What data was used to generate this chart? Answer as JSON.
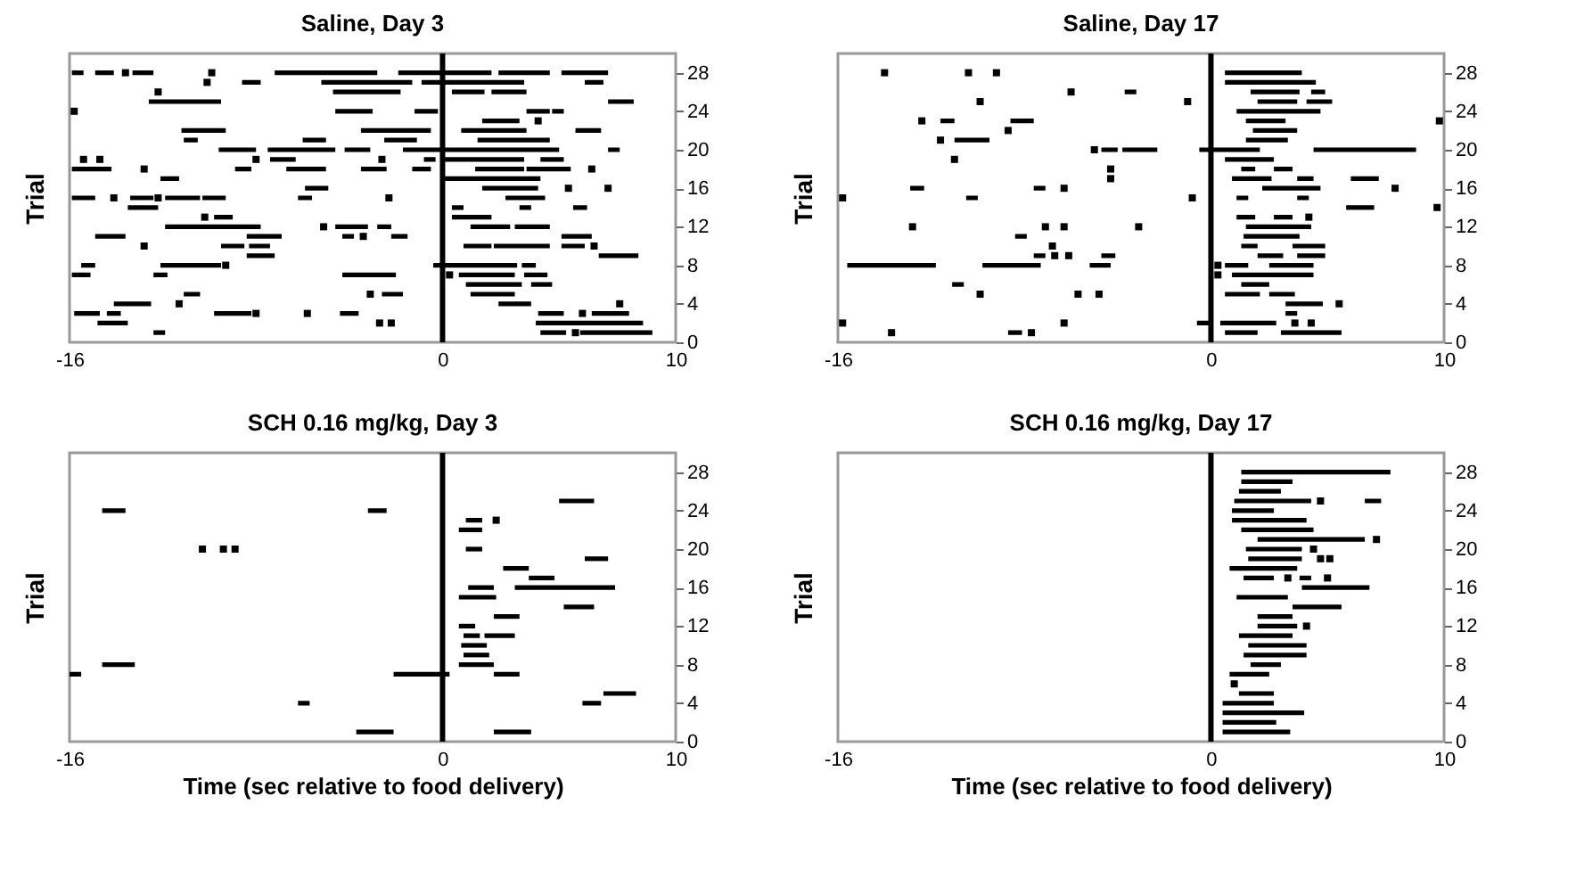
{
  "chart_data": [
    {
      "type": "line",
      "title": "Saline, Day 3",
      "ylabel": "Trial",
      "xlim": [
        -16,
        10
      ],
      "xticks": [
        -16,
        0,
        10
      ],
      "ylim": [
        0,
        30
      ],
      "yticks": [
        0,
        4,
        8,
        12,
        16,
        20,
        24,
        28
      ],
      "grid": false,
      "legend": false,
      "ref_lines": [
        {
          "axis": "x",
          "value": 0,
          "color": "#000000"
        }
      ],
      "series": [
        {
          "color": "#000000",
          "x": [
            -15.9,
            -15.4,
            null,
            -14.9,
            -14.1,
            null,
            -13.3,
            -12.4,
            null,
            -7.2,
            -2.8,
            null,
            -1.9,
            2.1,
            null,
            2.4,
            4.6,
            null,
            5.1,
            7.1
          ],
          "values": [
            28,
            28,
            null,
            28,
            28,
            null,
            28,
            28,
            null,
            28,
            28,
            null,
            28,
            28,
            null,
            28,
            28,
            null,
            28,
            28
          ]
        },
        {
          "color": "#000000",
          "x": [
            -8.6,
            -7.8,
            null,
            -5.2,
            -1.3,
            null,
            -0.9,
            3.5,
            null,
            6.1,
            6.9
          ],
          "values": [
            27,
            27,
            null,
            27,
            27,
            null,
            27,
            27,
            null,
            27,
            27
          ]
        },
        {
          "color": "#000000",
          "x": [
            -4.7,
            -1.8,
            null,
            0.4,
            1.8,
            null,
            2.1,
            3.6
          ],
          "values": [
            26,
            26,
            null,
            26,
            26,
            null,
            26,
            26
          ]
        },
        {
          "color": "#000000",
          "x": [
            -12.6,
            -9.5,
            null,
            7.1,
            8.2
          ],
          "values": [
            25,
            25,
            null,
            25,
            25
          ]
        },
        {
          "color": "#000000",
          "x": [
            -4.6,
            -3.0,
            null,
            -1.2,
            -0.2,
            null,
            3.6,
            4.6,
            null,
            4.7,
            5.2
          ],
          "values": [
            24,
            24,
            null,
            24,
            24,
            null,
            24,
            24,
            null,
            24,
            24
          ]
        },
        {
          "color": "#000000",
          "x": [
            1.7,
            3.3
          ],
          "values": [
            23,
            23
          ]
        },
        {
          "color": "#000000",
          "x": [
            -11.2,
            -9.3,
            null,
            -3.5,
            -0.5,
            null,
            0.8,
            3.6,
            null,
            5.7,
            6.8
          ],
          "values": [
            22,
            22,
            null,
            22,
            22,
            null,
            22,
            22,
            null,
            22,
            22
          ]
        },
        {
          "color": "#000000",
          "x": [
            -11.1,
            -10.5,
            null,
            -6.0,
            -5.0,
            null,
            -2.5,
            -1.1,
            null,
            1.5,
            4.6
          ],
          "values": [
            21,
            21,
            null,
            21,
            21,
            null,
            21,
            21,
            null,
            21,
            21
          ]
        },
        {
          "color": "#000000",
          "x": [
            -9.6,
            -8.0,
            null,
            -7.5,
            -4.6,
            null,
            -4.2,
            -3.1,
            null,
            -1.7,
            5.0,
            null,
            7.1,
            7.6
          ],
          "values": [
            20,
            20,
            null,
            20,
            20,
            null,
            20,
            20,
            null,
            20,
            20,
            null,
            20,
            20
          ]
        },
        {
          "color": "#000000",
          "x": [
            -7.4,
            -6.3,
            null,
            -0.8,
            -0.3,
            null,
            0.1,
            3.5,
            null,
            4.2,
            5.2
          ],
          "values": [
            19,
            19,
            null,
            19,
            19,
            null,
            19,
            19,
            null,
            19,
            19
          ]
        },
        {
          "color": "#000000",
          "x": [
            -15.9,
            -14.2,
            null,
            -8.9,
            -8.2,
            null,
            -6.7,
            -5.0,
            null,
            -3.5,
            -2.4,
            null,
            -1.3,
            -0.5,
            null,
            1.4,
            3.5,
            null,
            3.6,
            5.5
          ],
          "values": [
            18,
            18,
            null,
            18,
            18,
            null,
            18,
            18,
            null,
            18,
            18,
            null,
            18,
            18,
            null,
            18,
            18,
            null,
            18,
            18
          ]
        },
        {
          "color": "#000000",
          "x": [
            -12.1,
            -11.3,
            null,
            0.1,
            4.2
          ],
          "values": [
            17,
            17,
            null,
            17,
            17
          ]
        },
        {
          "color": "#000000",
          "x": [
            -5.9,
            -4.9,
            null,
            1.7,
            4.1
          ],
          "values": [
            16,
            16,
            null,
            16,
            16
          ]
        },
        {
          "color": "#000000",
          "x": [
            -15.9,
            -14.9,
            null,
            -13.4,
            -12.4,
            null,
            -11.9,
            -10.4,
            null,
            -10.3,
            -9.3,
            null,
            -6.2,
            -5.6,
            null,
            2.7,
            4.4
          ],
          "values": [
            15,
            15,
            null,
            15,
            15,
            null,
            15,
            15,
            null,
            15,
            15,
            null,
            15,
            15,
            null,
            15,
            15
          ]
        },
        {
          "color": "#000000",
          "x": [
            -13.5,
            -12.2,
            null,
            0.4,
            0.9,
            null,
            3.3,
            3.8,
            null,
            5.6,
            6.2
          ],
          "values": [
            14,
            14,
            null,
            14,
            14,
            null,
            14,
            14,
            null,
            14,
            14
          ]
        },
        {
          "color": "#000000",
          "x": [
            -9.8,
            -9.0,
            null,
            0.4,
            2.1
          ],
          "values": [
            13,
            13,
            null,
            13,
            13
          ]
        },
        {
          "color": "#000000",
          "x": [
            -11.9,
            -7.8,
            null,
            -4.6,
            -3.2,
            null,
            -2.8,
            -2.2,
            null,
            1.2,
            2.9,
            null,
            3.1,
            4.6
          ],
          "values": [
            12,
            12,
            null,
            12,
            12,
            null,
            12,
            12,
            null,
            12,
            12,
            null,
            12,
            12
          ]
        },
        {
          "color": "#000000",
          "x": [
            -14.9,
            -13.6,
            null,
            -8.4,
            -6.9,
            null,
            -4.3,
            -3.8,
            null,
            -2.2,
            -1.5,
            null,
            5.1,
            6.4
          ],
          "values": [
            11,
            11,
            null,
            11,
            11,
            null,
            11,
            11,
            null,
            11,
            11,
            null,
            11,
            11
          ]
        },
        {
          "color": "#000000",
          "x": [
            -9.5,
            -8.5,
            null,
            -8.3,
            -7.4,
            null,
            0.9,
            2.1,
            null,
            2.2,
            4.6,
            null,
            5.1,
            6.1
          ],
          "values": [
            10,
            10,
            null,
            10,
            10,
            null,
            10,
            10,
            null,
            10,
            10,
            null,
            10,
            10
          ]
        },
        {
          "color": "#000000",
          "x": [
            -8.4,
            -7.2,
            null,
            6.7,
            8.4
          ],
          "values": [
            9,
            9,
            null,
            9,
            9
          ]
        },
        {
          "color": "#000000",
          "x": [
            -15.5,
            -14.9,
            null,
            -12.1,
            -9.5,
            null,
            -0.4,
            3.2,
            null,
            3.4,
            4.0
          ],
          "values": [
            8,
            8,
            null,
            8,
            8,
            null,
            8,
            8,
            null,
            8,
            8
          ]
        },
        {
          "color": "#000000",
          "x": [
            -15.9,
            -15.1,
            null,
            -12.4,
            -11.8,
            null,
            -4.3,
            -2.0,
            null,
            0.7,
            3.1,
            null,
            3.5,
            4.5
          ],
          "values": [
            7,
            7,
            null,
            7,
            7,
            null,
            7,
            7,
            null,
            7,
            7,
            null,
            7,
            7
          ]
        },
        {
          "color": "#000000",
          "x": [
            1.0,
            3.4,
            null,
            3.8,
            4.7
          ],
          "values": [
            6,
            6,
            null,
            6,
            6
          ]
        },
        {
          "color": "#000000",
          "x": [
            -11.1,
            -10.4,
            null,
            -2.6,
            -1.7,
            null,
            1.2,
            3.1
          ],
          "values": [
            5,
            5,
            null,
            5,
            5,
            null,
            5,
            5
          ]
        },
        {
          "color": "#000000",
          "x": [
            -14.1,
            -12.5,
            null,
            2.4,
            3.8
          ],
          "values": [
            4,
            4,
            null,
            4,
            4
          ]
        },
        {
          "color": "#000000",
          "x": [
            -15.8,
            -14.7,
            null,
            -14.4,
            -13.8,
            null,
            -9.8,
            -8.2,
            null,
            -4.4,
            -3.6,
            null,
            4.1,
            5.2,
            null,
            6.4,
            8.0
          ],
          "values": [
            3,
            3,
            null,
            3,
            3,
            null,
            3,
            3,
            null,
            3,
            3,
            null,
            3,
            3,
            null,
            3,
            3
          ]
        },
        {
          "color": "#000000",
          "x": [
            -14.8,
            -13.5,
            null,
            4.0,
            8.6
          ],
          "values": [
            2,
            2,
            null,
            2,
            2
          ]
        },
        {
          "color": "#000000",
          "x": [
            -12.4,
            -11.9,
            null,
            4.2,
            5.3,
            null,
            5.9,
            9.0
          ],
          "values": [
            1,
            1,
            null,
            1,
            1,
            null,
            1,
            1
          ]
        },
        {
          "type": "scatter",
          "marker": "square",
          "color": "#000000",
          "x": [
            -13.6,
            -9.9,
            -10.1,
            -12.2,
            -15.8,
            4.1,
            -15.4,
            -14.7,
            -8.0,
            -2.6,
            -12.8,
            6.4,
            5.4,
            7.1,
            -14.1,
            -12.2,
            -2.3,
            -10.2,
            -5.1,
            -3.4,
            -12.8,
            6.5,
            -9.3,
            0.3,
            -3.1,
            -11.3,
            7.6,
            -8.0,
            -5.8,
            6.0,
            -2.7,
            -2.2,
            5.7
          ],
          "values": [
            28,
            28,
            27,
            26,
            24,
            23,
            19,
            19,
            19,
            19,
            18,
            18,
            16,
            16,
            15,
            15,
            15,
            13,
            12,
            11,
            10,
            10,
            8,
            7,
            5,
            4,
            4,
            3,
            3,
            3,
            2,
            2,
            1
          ]
        }
      ]
    },
    {
      "type": "line",
      "title": "Saline, Day 17",
      "ylabel": "Trial",
      "xlim": [
        -16,
        10
      ],
      "xticks": [
        -16,
        0,
        10
      ],
      "ylim": [
        0,
        30
      ],
      "yticks": [
        0,
        4,
        8,
        12,
        16,
        20,
        24,
        28
      ],
      "grid": false,
      "legend": false,
      "ref_lines": [
        {
          "axis": "x",
          "value": 0,
          "color": "#000000"
        }
      ],
      "series": [
        {
          "color": "#000000",
          "x": [
            0.6,
            3.9
          ],
          "values": [
            28,
            28
          ]
        },
        {
          "color": "#000000",
          "x": [
            0.6,
            4.5
          ],
          "values": [
            27,
            27
          ]
        },
        {
          "color": "#000000",
          "x": [
            -3.7,
            -3.2,
            null,
            1.7,
            3.8,
            null,
            4.3,
            4.9
          ],
          "values": [
            26,
            26,
            null,
            26,
            26,
            null,
            26,
            26
          ]
        },
        {
          "color": "#000000",
          "x": [
            2.0,
            3.7,
            null,
            4.1,
            5.2
          ],
          "values": [
            25,
            25,
            null,
            25,
            25
          ]
        },
        {
          "color": "#000000",
          "x": [
            1.1,
            4.7
          ],
          "values": [
            24,
            24
          ]
        },
        {
          "color": "#000000",
          "x": [
            -11.6,
            -11.0,
            null,
            -8.6,
            -7.6,
            null,
            1.5,
            3.2
          ],
          "values": [
            23,
            23,
            null,
            23,
            23,
            null,
            23,
            23
          ]
        },
        {
          "color": "#000000",
          "x": [
            1.8,
            3.7
          ],
          "values": [
            22,
            22
          ]
        },
        {
          "color": "#000000",
          "x": [
            -11.0,
            -9.5,
            null,
            1.5,
            3.3
          ],
          "values": [
            21,
            21,
            null,
            21,
            21
          ]
        },
        {
          "color": "#000000",
          "x": [
            -4.7,
            -4.0,
            null,
            -3.8,
            -2.3,
            null,
            -0.5,
            2.1,
            null,
            4.4,
            8.8
          ],
          "values": [
            20,
            20,
            null,
            20,
            20,
            null,
            20,
            20,
            null,
            20,
            20
          ]
        },
        {
          "color": "#000000",
          "x": [
            0.6,
            2.7
          ],
          "values": [
            19,
            19
          ]
        },
        {
          "color": "#000000",
          "x": [
            1.3,
            1.9,
            null,
            2.7,
            3.5
          ],
          "values": [
            18,
            18,
            null,
            18,
            18
          ]
        },
        {
          "color": "#000000",
          "x": [
            0.9,
            2.6,
            null,
            3.7,
            4.4,
            null,
            6.0,
            7.2
          ],
          "values": [
            17,
            17,
            null,
            17,
            17,
            null,
            17,
            17
          ]
        },
        {
          "color": "#000000",
          "x": [
            -12.9,
            -12.3,
            null,
            -7.6,
            -7.1,
            null,
            2.2,
            4.7
          ],
          "values": [
            16,
            16,
            null,
            16,
            16,
            null,
            16,
            16
          ]
        },
        {
          "color": "#000000",
          "x": [
            -10.5,
            -10.0,
            null,
            1.1,
            1.6,
            null,
            3.7,
            4.2
          ],
          "values": [
            15,
            15,
            null,
            15,
            15,
            null,
            15,
            15
          ]
        },
        {
          "color": "#000000",
          "x": [
            5.8,
            7.0
          ],
          "values": [
            14,
            14
          ]
        },
        {
          "color": "#000000",
          "x": [
            1.1,
            1.9,
            null,
            2.7,
            3.5
          ],
          "values": [
            13,
            13,
            null,
            13,
            13
          ]
        },
        {
          "color": "#000000",
          "x": [
            1.5,
            4.3
          ],
          "values": [
            12,
            12
          ]
        },
        {
          "color": "#000000",
          "x": [
            -8.4,
            -7.9,
            null,
            1.4,
            3.8
          ],
          "values": [
            11,
            11,
            null,
            11,
            11
          ]
        },
        {
          "color": "#000000",
          "x": [
            1.3,
            2.0,
            null,
            3.5,
            4.9
          ],
          "values": [
            10,
            10,
            null,
            10,
            10
          ]
        },
        {
          "color": "#000000",
          "x": [
            -7.6,
            -7.1,
            null,
            -4.7,
            -4.1,
            null,
            2.0,
            3.1,
            null,
            3.7,
            4.9
          ],
          "values": [
            9,
            9,
            null,
            9,
            9,
            null,
            9,
            9,
            null,
            9,
            9
          ]
        },
        {
          "color": "#000000",
          "x": [
            -15.6,
            -11.8,
            null,
            -9.8,
            -7.3,
            null,
            -5.2,
            -4.3,
            null,
            0.6,
            1.6,
            null,
            2.5,
            4.4
          ],
          "values": [
            8,
            8,
            null,
            8,
            8,
            null,
            8,
            8,
            null,
            8,
            8,
            null,
            8,
            8
          ]
        },
        {
          "color": "#000000",
          "x": [
            0.9,
            4.4
          ],
          "values": [
            7,
            7
          ]
        },
        {
          "color": "#000000",
          "x": [
            -11.1,
            -10.6,
            null,
            1.3,
            2.5
          ],
          "values": [
            6,
            6,
            null,
            6,
            6
          ]
        },
        {
          "color": "#000000",
          "x": [
            0.6,
            2.1,
            null,
            2.5,
            3.6
          ],
          "values": [
            5,
            5,
            null,
            5,
            5
          ]
        },
        {
          "color": "#000000",
          "x": [
            3.2,
            4.8
          ],
          "values": [
            4,
            4
          ]
        },
        {
          "color": "#000000",
          "x": [
            3.2,
            3.7
          ],
          "values": [
            3,
            3
          ]
        },
        {
          "color": "#000000",
          "x": [
            -0.6,
            0.0,
            null,
            0.4,
            2.8
          ],
          "values": [
            2,
            2,
            null,
            2,
            2
          ]
        },
        {
          "color": "#000000",
          "x": [
            -8.7,
            -8.1,
            null,
            0.6,
            2.0,
            null,
            3.0,
            5.6
          ],
          "values": [
            1,
            1,
            null,
            1,
            1,
            null,
            1,
            1
          ]
        },
        {
          "type": "scatter",
          "marker": "square",
          "color": "#000000",
          "x": [
            -14.0,
            -10.4,
            -9.2,
            -6.0,
            -9.9,
            -1.0,
            -12.4,
            9.8,
            -8.7,
            -11.6,
            -5.0,
            -11.0,
            -4.3,
            -4.3,
            -6.3,
            7.9,
            -15.8,
            -0.8,
            9.7,
            4.2,
            -12.8,
            -7.1,
            -6.3,
            -3.1,
            -6.8,
            -6.7,
            -6.1,
            0.3,
            0.3,
            -9.9,
            -5.7,
            -4.8,
            5.5,
            -15.8,
            -6.3,
            3.6,
            4.3,
            -13.7,
            -7.7
          ],
          "values": [
            28,
            28,
            28,
            26,
            25,
            25,
            23,
            23,
            22,
            21,
            20,
            19,
            18,
            17,
            16,
            16,
            15,
            15,
            14,
            13,
            12,
            12,
            12,
            12,
            10,
            9,
            9,
            8,
            7,
            5,
            5,
            5,
            4,
            2,
            2,
            2,
            2,
            1,
            1
          ]
        }
      ]
    },
    {
      "type": "line",
      "title": "SCH 0.16 mg/kg, Day 3",
      "xlabel": "Time (sec relative to food delivery)",
      "ylabel": "Trial",
      "xlim": [
        -16,
        10
      ],
      "xticks": [
        -16,
        0,
        10
      ],
      "ylim": [
        0,
        30
      ],
      "yticks": [
        0,
        4,
        8,
        12,
        16,
        20,
        24,
        28
      ],
      "grid": false,
      "legend": false,
      "ref_lines": [
        {
          "axis": "x",
          "value": 0,
          "color": "#000000"
        }
      ],
      "series": [
        {
          "color": "#000000",
          "x": [
            5.0,
            6.5
          ],
          "values": [
            25,
            25
          ]
        },
        {
          "color": "#000000",
          "x": [
            -14.6,
            -13.6,
            null,
            -3.2,
            -2.4
          ],
          "values": [
            24,
            24,
            null,
            24,
            24
          ]
        },
        {
          "color": "#000000",
          "x": [
            1.0,
            1.7
          ],
          "values": [
            23,
            23
          ]
        },
        {
          "color": "#000000",
          "x": [
            0.7,
            1.7
          ],
          "values": [
            22,
            22
          ]
        },
        {
          "color": "#000000",
          "x": [
            1.0,
            1.7
          ],
          "values": [
            20,
            20
          ]
        },
        {
          "color": "#000000",
          "x": [
            6.1,
            7.1
          ],
          "values": [
            19,
            19
          ]
        },
        {
          "color": "#000000",
          "x": [
            2.6,
            3.7
          ],
          "values": [
            18,
            18
          ]
        },
        {
          "color": "#000000",
          "x": [
            3.7,
            4.8
          ],
          "values": [
            17,
            17
          ]
        },
        {
          "color": "#000000",
          "x": [
            1.1,
            2.2,
            null,
            3.1,
            7.4
          ],
          "values": [
            16,
            16,
            null,
            16,
            16
          ]
        },
        {
          "color": "#000000",
          "x": [
            0.7,
            2.3
          ],
          "values": [
            15,
            15
          ]
        },
        {
          "color": "#000000",
          "x": [
            5.2,
            6.5
          ],
          "values": [
            14,
            14
          ]
        },
        {
          "color": "#000000",
          "x": [
            2.2,
            3.3
          ],
          "values": [
            13,
            13
          ]
        },
        {
          "color": "#000000",
          "x": [
            0.7,
            1.4
          ],
          "values": [
            12,
            12
          ]
        },
        {
          "color": "#000000",
          "x": [
            0.9,
            1.6,
            null,
            1.8,
            3.1
          ],
          "values": [
            11,
            11,
            null,
            11,
            11
          ]
        },
        {
          "color": "#000000",
          "x": [
            0.8,
            1.9
          ],
          "values": [
            10,
            10
          ]
        },
        {
          "color": "#000000",
          "x": [
            0.9,
            2.0
          ],
          "values": [
            9,
            9
          ]
        },
        {
          "color": "#000000",
          "x": [
            -14.6,
            -13.2,
            null,
            0.7,
            2.2
          ],
          "values": [
            8,
            8,
            null,
            8,
            8
          ]
        },
        {
          "color": "#000000",
          "x": [
            -16.0,
            -15.5,
            null,
            -2.1,
            0.3,
            null,
            2.2,
            3.3
          ],
          "values": [
            7,
            7,
            null,
            7,
            7,
            null,
            7,
            7
          ]
        },
        {
          "color": "#000000",
          "x": [
            6.9,
            8.3
          ],
          "values": [
            5,
            5
          ]
        },
        {
          "color": "#000000",
          "x": [
            -6.2,
            -5.7,
            null,
            6.0,
            6.8
          ],
          "values": [
            4,
            4,
            null,
            4,
            4
          ]
        },
        {
          "color": "#000000",
          "x": [
            -3.7,
            -2.1,
            null,
            2.2,
            3.8
          ],
          "values": [
            1,
            1,
            null,
            1,
            1
          ]
        },
        {
          "type": "scatter",
          "marker": "square",
          "color": "#000000",
          "x": [
            -10.3,
            -9.4,
            -8.9,
            2.3
          ],
          "values": [
            20,
            20,
            20,
            23
          ]
        }
      ]
    },
    {
      "type": "line",
      "title": "SCH 0.16 mg/kg, Day 17",
      "xlabel": "Time (sec relative to food delivery)",
      "ylabel": "Trial",
      "xlim": [
        -16,
        10
      ],
      "xticks": [
        -16,
        0,
        10
      ],
      "ylim": [
        0,
        30
      ],
      "yticks": [
        0,
        4,
        8,
        12,
        16,
        20,
        24,
        28
      ],
      "grid": false,
      "legend": false,
      "ref_lines": [
        {
          "axis": "x",
          "value": 0,
          "color": "#000000"
        }
      ],
      "series": [
        {
          "color": "#000000",
          "x": [
            1.3,
            7.7
          ],
          "values": [
            28,
            28
          ]
        },
        {
          "color": "#000000",
          "x": [
            1.3,
            3.5
          ],
          "values": [
            27,
            27
          ]
        },
        {
          "color": "#000000",
          "x": [
            1.2,
            3.0
          ],
          "values": [
            26,
            26
          ]
        },
        {
          "color": "#000000",
          "x": [
            1.0,
            4.3,
            null,
            6.6,
            7.3
          ],
          "values": [
            25,
            25,
            null,
            25,
            25
          ]
        },
        {
          "color": "#000000",
          "x": [
            0.9,
            2.7
          ],
          "values": [
            24,
            24
          ]
        },
        {
          "color": "#000000",
          "x": [
            0.9,
            4.1
          ],
          "values": [
            23,
            23
          ]
        },
        {
          "color": "#000000",
          "x": [
            1.3,
            4.4
          ],
          "values": [
            22,
            22
          ]
        },
        {
          "color": "#000000",
          "x": [
            2.0,
            6.6
          ],
          "values": [
            21,
            21
          ]
        },
        {
          "color": "#000000",
          "x": [
            1.5,
            3.9
          ],
          "values": [
            20,
            20
          ]
        },
        {
          "color": "#000000",
          "x": [
            1.6,
            3.9
          ],
          "values": [
            19,
            19
          ]
        },
        {
          "color": "#000000",
          "x": [
            0.8,
            3.7
          ],
          "values": [
            18,
            18
          ]
        },
        {
          "color": "#000000",
          "x": [
            1.4,
            2.7,
            null,
            3.8,
            4.3
          ],
          "values": [
            17,
            17,
            null,
            17,
            17
          ]
        },
        {
          "color": "#000000",
          "x": [
            3.9,
            6.8
          ],
          "values": [
            16,
            16
          ]
        },
        {
          "color": "#000000",
          "x": [
            1.1,
            3.3
          ],
          "values": [
            15,
            15
          ]
        },
        {
          "color": "#000000",
          "x": [
            3.5,
            5.6
          ],
          "values": [
            14,
            14
          ]
        },
        {
          "color": "#000000",
          "x": [
            2.0,
            3.5
          ],
          "values": [
            13,
            13
          ]
        },
        {
          "color": "#000000",
          "x": [
            2.0,
            3.7
          ],
          "values": [
            12,
            12
          ]
        },
        {
          "color": "#000000",
          "x": [
            1.2,
            3.5
          ],
          "values": [
            11,
            11
          ]
        },
        {
          "color": "#000000",
          "x": [
            1.6,
            4.1
          ],
          "values": [
            10,
            10
          ]
        },
        {
          "color": "#000000",
          "x": [
            1.4,
            4.1
          ],
          "values": [
            9,
            9
          ]
        },
        {
          "color": "#000000",
          "x": [
            1.7,
            3.0
          ],
          "values": [
            8,
            8
          ]
        },
        {
          "color": "#000000",
          "x": [
            0.8,
            2.5
          ],
          "values": [
            7,
            7
          ]
        },
        {
          "color": "#000000",
          "x": [
            1.2,
            2.7
          ],
          "values": [
            5,
            5
          ]
        },
        {
          "color": "#000000",
          "x": [
            0.5,
            2.7
          ],
          "values": [
            4,
            4
          ]
        },
        {
          "color": "#000000",
          "x": [
            0.5,
            4.0
          ],
          "values": [
            3,
            3
          ]
        },
        {
          "color": "#000000",
          "x": [
            0.5,
            2.8
          ],
          "values": [
            2,
            2
          ]
        },
        {
          "color": "#000000",
          "x": [
            0.5,
            3.4
          ],
          "values": [
            1,
            1
          ]
        },
        {
          "type": "scatter",
          "marker": "square",
          "color": "#000000",
          "x": [
            4.7,
            7.1,
            4.4,
            4.7,
            5.1,
            3.3,
            5.0,
            4.1,
            1.0
          ],
          "values": [
            25,
            21,
            20,
            19,
            19,
            17,
            17,
            12,
            6
          ]
        }
      ]
    }
  ]
}
